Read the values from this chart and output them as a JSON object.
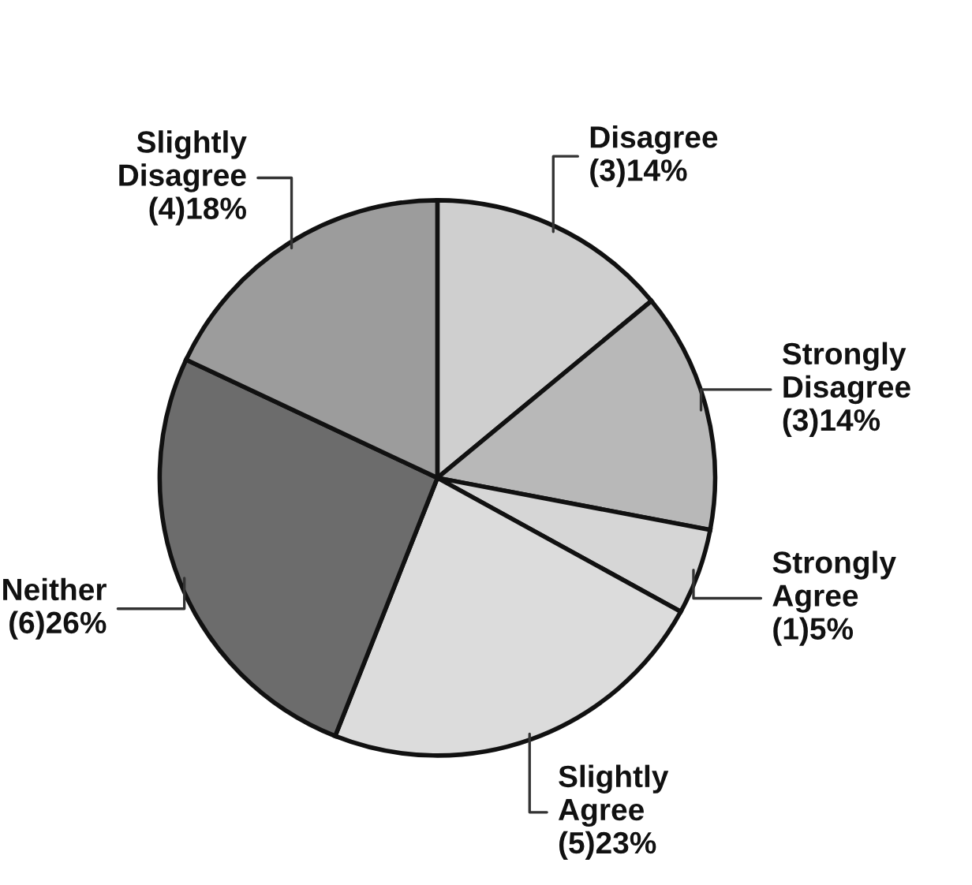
{
  "chart_data": {
    "type": "pie",
    "categories": [
      "Disagree",
      "Strongly Disagree",
      "Strongly Agree",
      "Slightly Agree",
      "Neither",
      "Slightly Disagree"
    ],
    "values": [
      14,
      14,
      5,
      23,
      26,
      18
    ],
    "value_labels": [
      "(3)14%",
      "(3)14%",
      "(1)5%",
      "(5)23%",
      "(6)26%",
      "(4)18%"
    ],
    "colors": [
      "#cfcfcf",
      "#b8b8b8",
      "#d6d6d6",
      "#dcdcdc",
      "#6c6c6c",
      "#9c9c9c"
    ]
  }
}
